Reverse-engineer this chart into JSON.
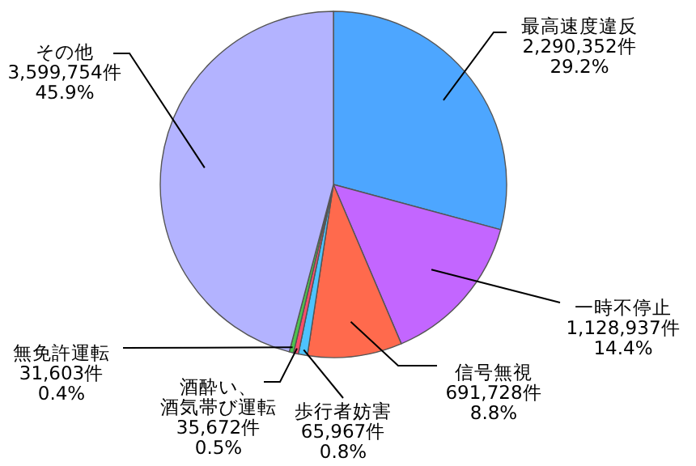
{
  "chart_data": {
    "type": "pie",
    "categories": [
      "最高速度違反",
      "一時不停止",
      "信号無視",
      "歩行者妨害",
      "酒酔い、酒気帯び運転",
      "無免許運転",
      "その他"
    ],
    "values": [
      2290352,
      1128937,
      691728,
      65967,
      35672,
      31603,
      3599754
    ],
    "value_labels": [
      "2,290,352件\n29.2%",
      "1,128,937件\n14.4%",
      "691,728件\n8.8%",
      "65,967件\n0.8%",
      "35,672件\n0.5%",
      "31,603件\n0.4%",
      "3,599,754件\n45.9%"
    ],
    "colors": [
      "#4da6ff",
      "#c366ff",
      "#ff6a4d",
      "#4dc3ff",
      "#ff4d6a",
      "#4dc34d",
      "#b3b3ff"
    ]
  }
}
